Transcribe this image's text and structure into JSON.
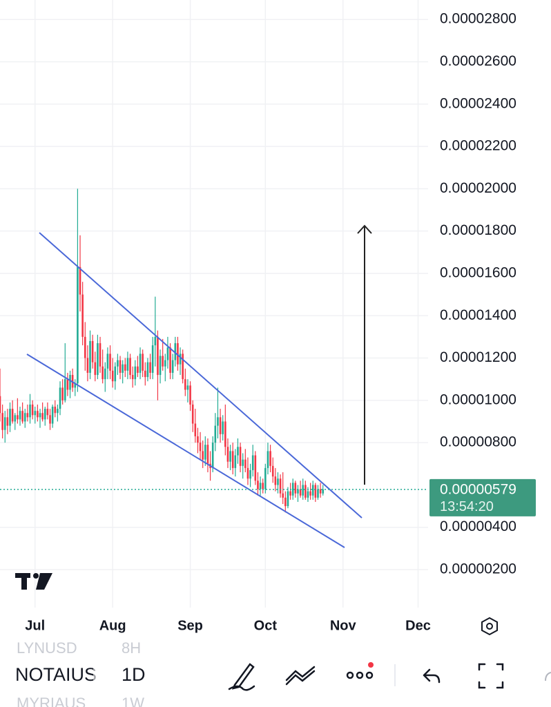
{
  "chart_data": {
    "type": "candlestick",
    "x": [
      -14,
      -13,
      -12,
      -11,
      -10,
      -9,
      -8,
      -7,
      -6,
      -5,
      -4,
      -3,
      -2,
      -1,
      0,
      1,
      2,
      3,
      4,
      5,
      6,
      7,
      8,
      9,
      10,
      11,
      12,
      13,
      14,
      15,
      16,
      17,
      18,
      19,
      20,
      21,
      22,
      23,
      24,
      25,
      26,
      27,
      28,
      29,
      30,
      31,
      32,
      33,
      34,
      35,
      36,
      37,
      38,
      39,
      40,
      41,
      42,
      43,
      44,
      45,
      46,
      47,
      48,
      49,
      50,
      51,
      52,
      53,
      54,
      55,
      56,
      57,
      58,
      59,
      60,
      61,
      62,
      63,
      64,
      65,
      66,
      67,
      68,
      69,
      70,
      71,
      72,
      73,
      74,
      75,
      76,
      77,
      78,
      79,
      80,
      81,
      82,
      83,
      84,
      85,
      86,
      87,
      88,
      89,
      90,
      91,
      92,
      93,
      94,
      95,
      96,
      97,
      98,
      99,
      100,
      101,
      102,
      103,
      104,
      105,
      106,
      107,
      108,
      109,
      110,
      111,
      112,
      113,
      114,
      115
    ],
    "candles": [
      [
        1.02e-05,
        1.15e-05,
        9e-06,
        9.4e-06
      ],
      [
        9.4e-06,
        9.8e-06,
        8.2e-06,
        8.6e-06
      ],
      [
        8.6e-06,
        9.5e-06,
        8e-06,
        9.2e-06
      ],
      [
        9.2e-06,
        9.6e-06,
        8.4e-06,
        8.8e-06
      ],
      [
        8.8e-06,
        9.9e-06,
        8.5e-06,
        9.6e-06
      ],
      [
        9.6e-06,
        1e-05,
        8.9e-06,
        9e-06
      ],
      [
        9e-06,
        9.4e-06,
        8.6e-06,
        9.3e-06
      ],
      [
        9.3e-06,
        1.01e-05,
        8.9e-06,
        9.1e-06
      ],
      [
        9.1e-06,
        9.7e-06,
        8.8e-06,
        9.5e-06
      ],
      [
        9.5e-06,
        9.9e-06,
        8.9e-06,
        9e-06
      ],
      [
        9e-06,
        9.6e-06,
        8.7e-06,
        9.4e-06
      ],
      [
        9.4e-06,
        9.8e-06,
        9e-06,
        9.2e-06
      ],
      [
        9.2e-06,
        1.03e-05,
        8.9e-06,
        9.8e-06
      ],
      [
        9.8e-06,
        1e-05,
        9.1e-06,
        9.3e-06
      ],
      [
        9.3e-06,
        9.7e-06,
        8.9e-06,
        9.5e-06
      ],
      [
        9.5e-06,
        9.8e-06,
        9e-06,
        9.2e-06
      ],
      [
        9.2e-06,
        9.6e-06,
        8.7e-06,
        9.4e-06
      ],
      [
        9.4e-06,
        9.9e-06,
        9e-06,
        9.1e-06
      ],
      [
        9.1e-06,
        9.7e-06,
        8.8e-06,
        9.6e-06
      ],
      [
        9.6e-06,
        9.9e-06,
        9.1e-06,
        9.3e-06
      ],
      [
        9.3e-06,
        9.6e-06,
        8.6e-06,
        8.9e-06
      ],
      [
        8.9e-06,
        9.8e-06,
        8.7e-06,
        9.7e-06
      ],
      [
        9.7e-06,
        1e-05,
        9.2e-06,
        9.4e-06
      ],
      [
        9.4e-06,
        9.8e-06,
        9e-06,
        9.6e-06
      ],
      [
        9.6e-06,
        1.09e-05,
        9.3e-06,
        1.06e-05
      ],
      [
        1.06e-05,
        1.1e-05,
        9.8e-06,
        1e-05
      ],
      [
        1e-05,
        1.27e-05,
        9.9e-06,
        1.1e-05
      ],
      [
        1.1e-05,
        1.13e-05,
        1.02e-05,
        1.05e-05
      ],
      [
        1.05e-05,
        1.14e-05,
        1.01e-05,
        1.12e-05
      ],
      [
        1.12e-05,
        1.15e-05,
        1.04e-05,
        1.06e-05
      ],
      [
        1.06e-05,
        1.1e-05,
        1.02e-05,
        1.08e-05
      ],
      [
        1.08e-05,
        2e-05,
        1.04e-05,
        1.63e-05
      ],
      [
        1.63e-05,
        1.78e-05,
        1.42e-05,
        1.5e-05
      ],
      [
        1.5e-05,
        1.56e-05,
        1.26e-05,
        1.3e-05
      ],
      [
        1.3e-05,
        1.37e-05,
        1.14e-05,
        1.2e-05
      ],
      [
        1.2e-05,
        1.26e-05,
        1.09e-05,
        1.13e-05
      ],
      [
        1.13e-05,
        1.33e-05,
        1.1e-05,
        1.28e-05
      ],
      [
        1.28e-05,
        1.31e-05,
        1.15e-05,
        1.18e-05
      ],
      [
        1.18e-05,
        1.23e-05,
        1.09e-05,
        1.12e-05
      ],
      [
        1.12e-05,
        1.31e-05,
        1.1e-05,
        1.27e-05
      ],
      [
        1.27e-05,
        1.3e-05,
        1.13e-05,
        1.16e-05
      ],
      [
        1.16e-05,
        1.24e-05,
        1.08e-05,
        1.1e-05
      ],
      [
        1.1e-05,
        1.18e-05,
        1.04e-05,
        1.15e-05
      ],
      [
        1.15e-05,
        1.25e-05,
        1.1e-05,
        1.22e-05
      ],
      [
        1.22e-05,
        1.26e-05,
        1.1e-05,
        1.14e-05
      ],
      [
        1.14e-05,
        1.2e-05,
        1.06e-05,
        1.09e-05
      ],
      [
        1.09e-05,
        1.18e-05,
        1.05e-05,
        1.16e-05
      ],
      [
        1.16e-05,
        1.22e-05,
        1.12e-05,
        1.19e-05
      ],
      [
        1.19e-05,
        1.21e-05,
        1.1e-05,
        1.13e-05
      ],
      [
        1.13e-05,
        1.19e-05,
        1.08e-05,
        1.17e-05
      ],
      [
        1.17e-05,
        1.2e-05,
        1.11e-05,
        1.14e-05
      ],
      [
        1.14e-05,
        1.23e-05,
        1.1e-05,
        1.2e-05
      ],
      [
        1.2e-05,
        1.22e-05,
        1.1e-05,
        1.12e-05
      ],
      [
        1.12e-05,
        1.16e-05,
        1.06e-05,
        1.1e-05
      ],
      [
        1.1e-05,
        1.19e-05,
        1.07e-05,
        1.16e-05
      ],
      [
        1.16e-05,
        1.21e-05,
        1.11e-05,
        1.13e-05
      ],
      [
        1.13e-05,
        1.25e-05,
        1.1e-05,
        1.22e-05
      ],
      [
        1.22e-05,
        1.24e-05,
        1.11e-05,
        1.14e-05
      ],
      [
        1.14e-05,
        1.18e-05,
        1.07e-05,
        1.11e-05
      ],
      [
        1.11e-05,
        1.2e-05,
        1.09e-05,
        1.18e-05
      ],
      [
        1.18e-05,
        1.22e-05,
        1.1e-05,
        1.13e-05
      ],
      [
        1.13e-05,
        1.3e-05,
        1.1e-05,
        1.26e-05
      ],
      [
        1.26e-05,
        1.49e-05,
        1.16e-05,
        1.3e-05
      ],
      [
        1.3e-05,
        1.33e-05,
        1e-05,
        1.12e-05
      ],
      [
        1.12e-05,
        1.24e-05,
        1.08e-05,
        1.21e-05
      ],
      [
        1.21e-05,
        1.29e-05,
        1.14e-05,
        1.16e-05
      ],
      [
        1.16e-05,
        1.22e-05,
        1.09e-05,
        1.19e-05
      ],
      [
        1.19e-05,
        1.3e-05,
        1.15e-05,
        1.25e-05
      ],
      [
        1.25e-05,
        1.27e-05,
        1.1e-05,
        1.13e-05
      ],
      [
        1.13e-05,
        1.22e-05,
        1.1e-05,
        1.19e-05
      ],
      [
        1.19e-05,
        1.3e-05,
        1.16e-05,
        1.27e-05
      ],
      [
        1.27e-05,
        1.3e-05,
        1.14e-05,
        1.17e-05
      ],
      [
        1.17e-05,
        1.25e-05,
        1.12e-05,
        1.22e-05
      ],
      [
        1.22e-05,
        1.24e-05,
        1.08e-05,
        1.1e-05
      ],
      [
        1.1e-05,
        1.15e-05,
        1.02e-05,
        1.05e-05
      ],
      [
        1.05e-05,
        1.1e-05,
        9.9e-06,
        1.07e-05
      ],
      [
        1.07e-05,
        1.09e-05,
        9.5e-06,
        9.8e-06
      ],
      [
        9.8e-06,
        1e-05,
        8.5e-06,
        8.9e-06
      ],
      [
        8.9e-06,
        9.6e-06,
        8e-06,
        8.3e-06
      ],
      [
        8.3e-06,
        8.7e-06,
        7.5e-06,
        8e-06
      ],
      [
        8e-06,
        8.5e-06,
        7.2e-06,
        7.6e-06
      ],
      [
        7.6e-06,
        8.1e-06,
        6.8e-06,
        7.2e-06
      ],
      [
        7.2e-06,
        8.3e-06,
        6.9e-06,
        7.9e-06
      ],
      [
        7.9e-06,
        8.2e-06,
        6.6e-06,
        7e-06
      ],
      [
        7e-06,
        7.6e-06,
        6.2e-06,
        6.8e-06
      ],
      [
        6.8e-06,
        8.3e-06,
        6.6e-06,
        8e-06
      ],
      [
        8e-06,
        9.4e-06,
        7.6e-06,
        8.8e-06
      ],
      [
        8.8e-06,
        1.06e-05,
        8.2e-06,
        9.2e-06
      ],
      [
        9.2e-06,
        9.6e-06,
        8e-06,
        8.4e-06
      ],
      [
        8.4e-06,
        9.3e-06,
        8.1e-06,
        9e-06
      ],
      [
        9e-06,
        9.8e-06,
        7.4e-06,
        7.8e-06
      ],
      [
        7.8e-06,
        8.2e-06,
        6.8e-06,
        7.1e-06
      ],
      [
        7.1e-06,
        7.9e-06,
        6.7e-06,
        7.6e-06
      ],
      [
        7.6e-06,
        8e-06,
        6.5e-06,
        6.8e-06
      ],
      [
        6.8e-06,
        7.7e-06,
        6.4e-06,
        7.4e-06
      ],
      [
        7.4e-06,
        8.2e-06,
        7e-06,
        7.8e-06
      ],
      [
        7.8e-06,
        8e-06,
        6.6e-06,
        6.9e-06
      ],
      [
        6.9e-06,
        7.5e-06,
        6.3e-06,
        7.2e-06
      ],
      [
        7.2e-06,
        7.7e-06,
        6.6e-06,
        6.8e-06
      ],
      [
        6.8e-06,
        7.3e-06,
        6e-06,
        6.3e-06
      ],
      [
        6.3e-06,
        7e-06,
        5.9e-06,
        6.7e-06
      ],
      [
        6.7e-06,
        7.9e-06,
        6.4e-06,
        7.4e-06
      ],
      [
        7.4e-06,
        7.6e-06,
        6e-06,
        6.2e-06
      ],
      [
        6.2e-06,
        6.6e-06,
        5.5e-06,
        5.8e-06
      ],
      [
        5.8e-06,
        6.4e-06,
        5.5e-06,
        6.1e-06
      ],
      [
        6.1e-06,
        6.3e-06,
        5.6e-06,
        5.8e-06
      ],
      [
        5.8e-06,
        7e-06,
        5.6e-06,
        6.8e-06
      ],
      [
        6.8e-06,
        8e-06,
        6.5e-06,
        7.6e-06
      ],
      [
        7.6e-06,
        7.9e-06,
        6.6e-06,
        6.9e-06
      ],
      [
        6.9e-06,
        7.3e-06,
        6.1e-06,
        6.4e-06
      ],
      [
        6.4e-06,
        6.8e-06,
        5.7e-06,
        6e-06
      ],
      [
        6e-06,
        6.6e-06,
        5.6e-06,
        6.3e-06
      ],
      [
        6.3e-06,
        6.5e-06,
        5.4e-06,
        5.6e-06
      ],
      [
        5.6e-06,
        6.6e-06,
        5.1e-06,
        5.4e-06
      ],
      [
        5.4e-06,
        5.7e-06,
        4.7e-06,
        5e-06
      ],
      [
        5e-06,
        5.9e-06,
        4.9e-06,
        5.7e-06
      ],
      [
        5.7e-06,
        6.1e-06,
        5.3e-06,
        5.5e-06
      ],
      [
        5.5e-06,
        6.3e-06,
        5.3e-06,
        6.1e-06
      ],
      [
        6.1e-06,
        6.2e-06,
        5.4e-06,
        5.6e-06
      ],
      [
        5.6e-06,
        6e-06,
        5.2e-06,
        5.8e-06
      ],
      [
        5.8e-06,
        6.2e-06,
        5.4e-06,
        5.5e-06
      ],
      [
        5.5e-06,
        6.3e-06,
        5.3e-06,
        6e-06
      ],
      [
        6e-06,
        6.2e-06,
        5.3e-06,
        5.4e-06
      ],
      [
        5.4e-06,
        5.9e-06,
        5.2e-06,
        5.7e-06
      ],
      [
        5.7e-06,
        6.1e-06,
        5.3e-06,
        5.5e-06
      ],
      [
        5.5e-06,
        6.2e-06,
        5.3e-06,
        6e-06
      ],
      [
        6e-06,
        6.1e-06,
        5.2e-06,
        5.4e-06
      ],
      [
        5.4e-06,
        6e-06,
        5.3e-06,
        5.8e-06
      ],
      [
        5.8e-06,
        6.1e-06,
        5.4e-06,
        5.6e-06
      ],
      [
        5.6e-06,
        6e-06,
        5.5e-06,
        5.79e-06
      ]
    ],
    "xlim": [
      -14,
      157
    ],
    "xticks": [
      {
        "value": 0,
        "label": "Jul"
      },
      {
        "value": 31,
        "label": "Aug"
      },
      {
        "value": 62,
        "label": "Sep"
      },
      {
        "value": 92,
        "label": "Oct"
      },
      {
        "value": 123,
        "label": "Nov"
      },
      {
        "value": 153,
        "label": "Dec"
      }
    ],
    "ylim": [
      2.05e-07,
      2.892e-05
    ],
    "yticks": [
      {
        "value": 2.8e-05,
        "label": "0.00002800"
      },
      {
        "value": 2.6e-05,
        "label": "0.00002600"
      },
      {
        "value": 2.4e-05,
        "label": "0.00002400"
      },
      {
        "value": 2.2e-05,
        "label": "0.00002200"
      },
      {
        "value": 2e-05,
        "label": "0.00002000"
      },
      {
        "value": 1.8e-05,
        "label": "0.00001800"
      },
      {
        "value": 1.6e-05,
        "label": "0.00001600"
      },
      {
        "value": 1.4e-05,
        "label": "0.00001400"
      },
      {
        "value": 1.2e-05,
        "label": "0.00001200"
      },
      {
        "value": 1e-05,
        "label": "0.00001000"
      },
      {
        "value": 8e-06,
        "label": "0.00000800"
      },
      {
        "value": 4e-06,
        "label": "0.00000400"
      },
      {
        "value": 2e-06,
        "label": "0.00000200"
      }
    ],
    "grid": true,
    "up_color": "#22ab94",
    "down_color": "#f23645",
    "last_price": {
      "value": 5.79e-06,
      "label": "0.00000579"
    },
    "countdown": "13:54:20"
  },
  "toolbar": {
    "symbols": [
      {
        "symbol": "LYNUSD",
        "interval": "8H"
      },
      {
        "symbol": "NOTAIUS",
        "interval": "1D"
      },
      {
        "symbol": "MYRIAUS",
        "interval": "1W"
      }
    ]
  }
}
